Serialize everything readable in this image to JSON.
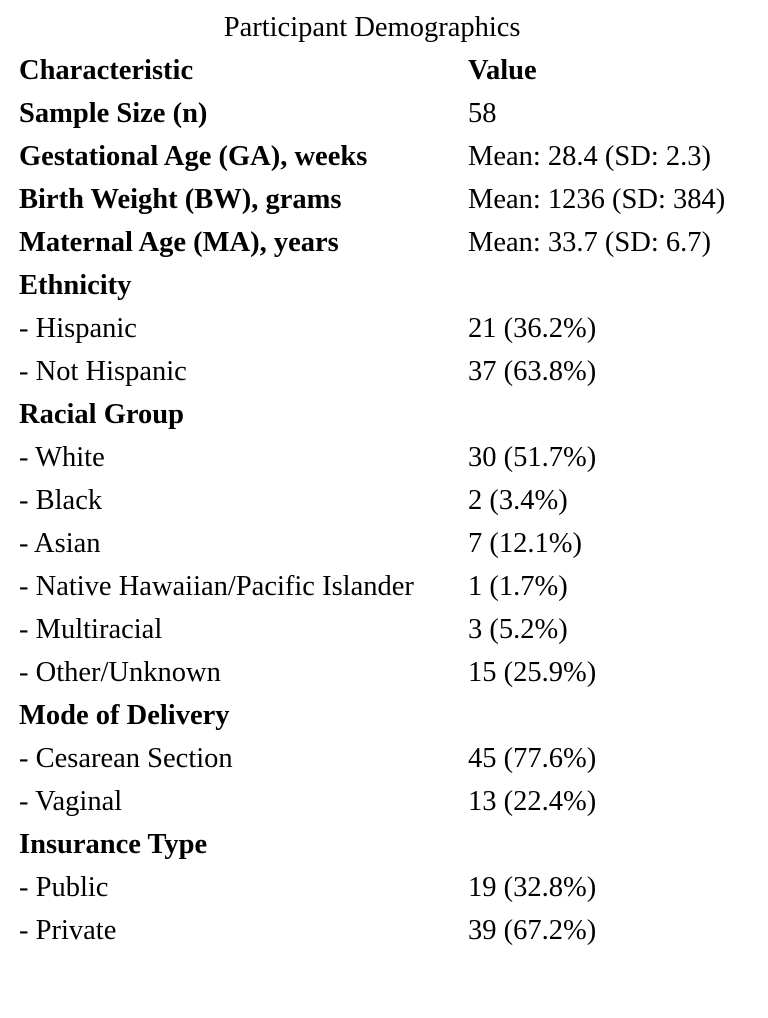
{
  "table": {
    "caption": "Participant Demographics",
    "headers": {
      "characteristic": "Characteristic",
      "value": "Value"
    },
    "rows": [
      {
        "label": "Sample Size (n)",
        "value": "58",
        "bold": true
      },
      {
        "label": "Gestational Age (GA), weeks",
        "value": "Mean: 28.4 (SD: 2.3)",
        "bold": true
      },
      {
        "label": "Birth Weight (BW), grams",
        "value": "Mean: 1236 (SD: 384)",
        "bold": true
      },
      {
        "label": "Maternal Age (MA), years",
        "value": "Mean: 33.7 (SD: 6.7)",
        "bold": true
      },
      {
        "label": "Ethnicity",
        "value": "",
        "bold": true
      },
      {
        "label": "- Hispanic",
        "value": "21 (36.2%)",
        "bold": false
      },
      {
        "label": "- Not Hispanic",
        "value": "37 (63.8%)",
        "bold": false
      },
      {
        "label": "Racial Group",
        "value": "",
        "bold": true
      },
      {
        "label": "- White",
        "value": "30 (51.7%)",
        "bold": false
      },
      {
        "label": "- Black",
        "value": "2 (3.4%)",
        "bold": false
      },
      {
        "label": "- Asian",
        "value": "7 (12.1%)",
        "bold": false
      },
      {
        "label": "- Native Hawaiian/Pacific Islander",
        "value": "1 (1.7%)",
        "bold": false
      },
      {
        "label": "- Multiracial",
        "value": "3 (5.2%)",
        "bold": false
      },
      {
        "label": "- Other/Unknown",
        "value": "15 (25.9%)",
        "bold": false
      },
      {
        "label": "Mode of Delivery",
        "value": "",
        "bold": true
      },
      {
        "label": "- Cesarean Section",
        "value": "45 (77.6%)",
        "bold": false
      },
      {
        "label": "- Vaginal",
        "value": "13 (22.4%)",
        "bold": false
      },
      {
        "label": "Insurance Type",
        "value": "",
        "bold": true
      },
      {
        "label": "- Public",
        "value": "19 (32.8%)",
        "bold": false
      },
      {
        "label": "- Private",
        "value": "39 (67.2%)",
        "bold": false
      }
    ]
  }
}
